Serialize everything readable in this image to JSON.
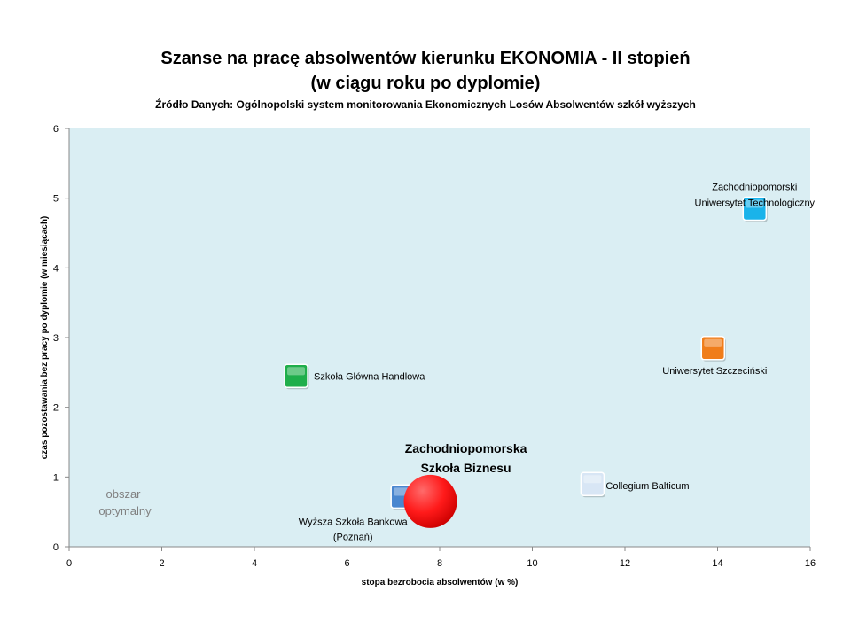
{
  "chart_data": {
    "type": "scatter",
    "title": "Szanse na pracę absolwentów kierunku EKONOMIA - II stopień",
    "subtitle": "(w ciągu roku po dyplomie)",
    "source": "Źródło Danych: Ogólnopolski system monitorowania Ekonomicznych Losów  Absolwentów szkół wyższych",
    "xlabel": "stopa bezrobocia absolwentów (w %)",
    "ylabel": "czas  pozostawania  bez  pracy  po  dyplomie  (w  miesiącach)",
    "xlim": [
      0,
      16
    ],
    "ylim": [
      0,
      6
    ],
    "xticks": [
      "0",
      "2",
      "4",
      "6",
      "8",
      "10",
      "12",
      "14",
      "16"
    ],
    "yticks": [
      "0",
      "1",
      "2",
      "3",
      "4",
      "5",
      "6"
    ],
    "grid": false,
    "annotation": [
      "obszar",
      "optymalny"
    ],
    "points": [
      {
        "label": [
          "Szkoła Główna Handlowa"
        ],
        "x": 4.9,
        "y": 2.45,
        "color": "#1fae4b",
        "shape": "square"
      },
      {
        "label": [
          "Zachodniopomorski",
          "Uniwersytet Technologiczny"
        ],
        "x": 14.8,
        "y": 4.85,
        "color": "#1ab3ea",
        "shape": "square"
      },
      {
        "label": [
          "Uniwersytet Szczeciński"
        ],
        "x": 13.9,
        "y": 2.85,
        "color": "#f07d1a",
        "shape": "square"
      },
      {
        "label": [
          "Collegium Balticum"
        ],
        "x": 11.3,
        "y": 0.9,
        "color": "#d8e6f5",
        "shape": "square"
      },
      {
        "label": [
          "Wyższa Szkoła Bankowa",
          "(Poznań)"
        ],
        "x": 7.2,
        "y": 0.72,
        "color": "#4a86cf",
        "shape": "square"
      },
      {
        "label": [
          "Zachodniopomorska",
          "Szkoła Biznesu"
        ],
        "x": 7.8,
        "y": 0.65,
        "color": "#ff0000",
        "shape": "circle",
        "highlight": true
      }
    ]
  }
}
